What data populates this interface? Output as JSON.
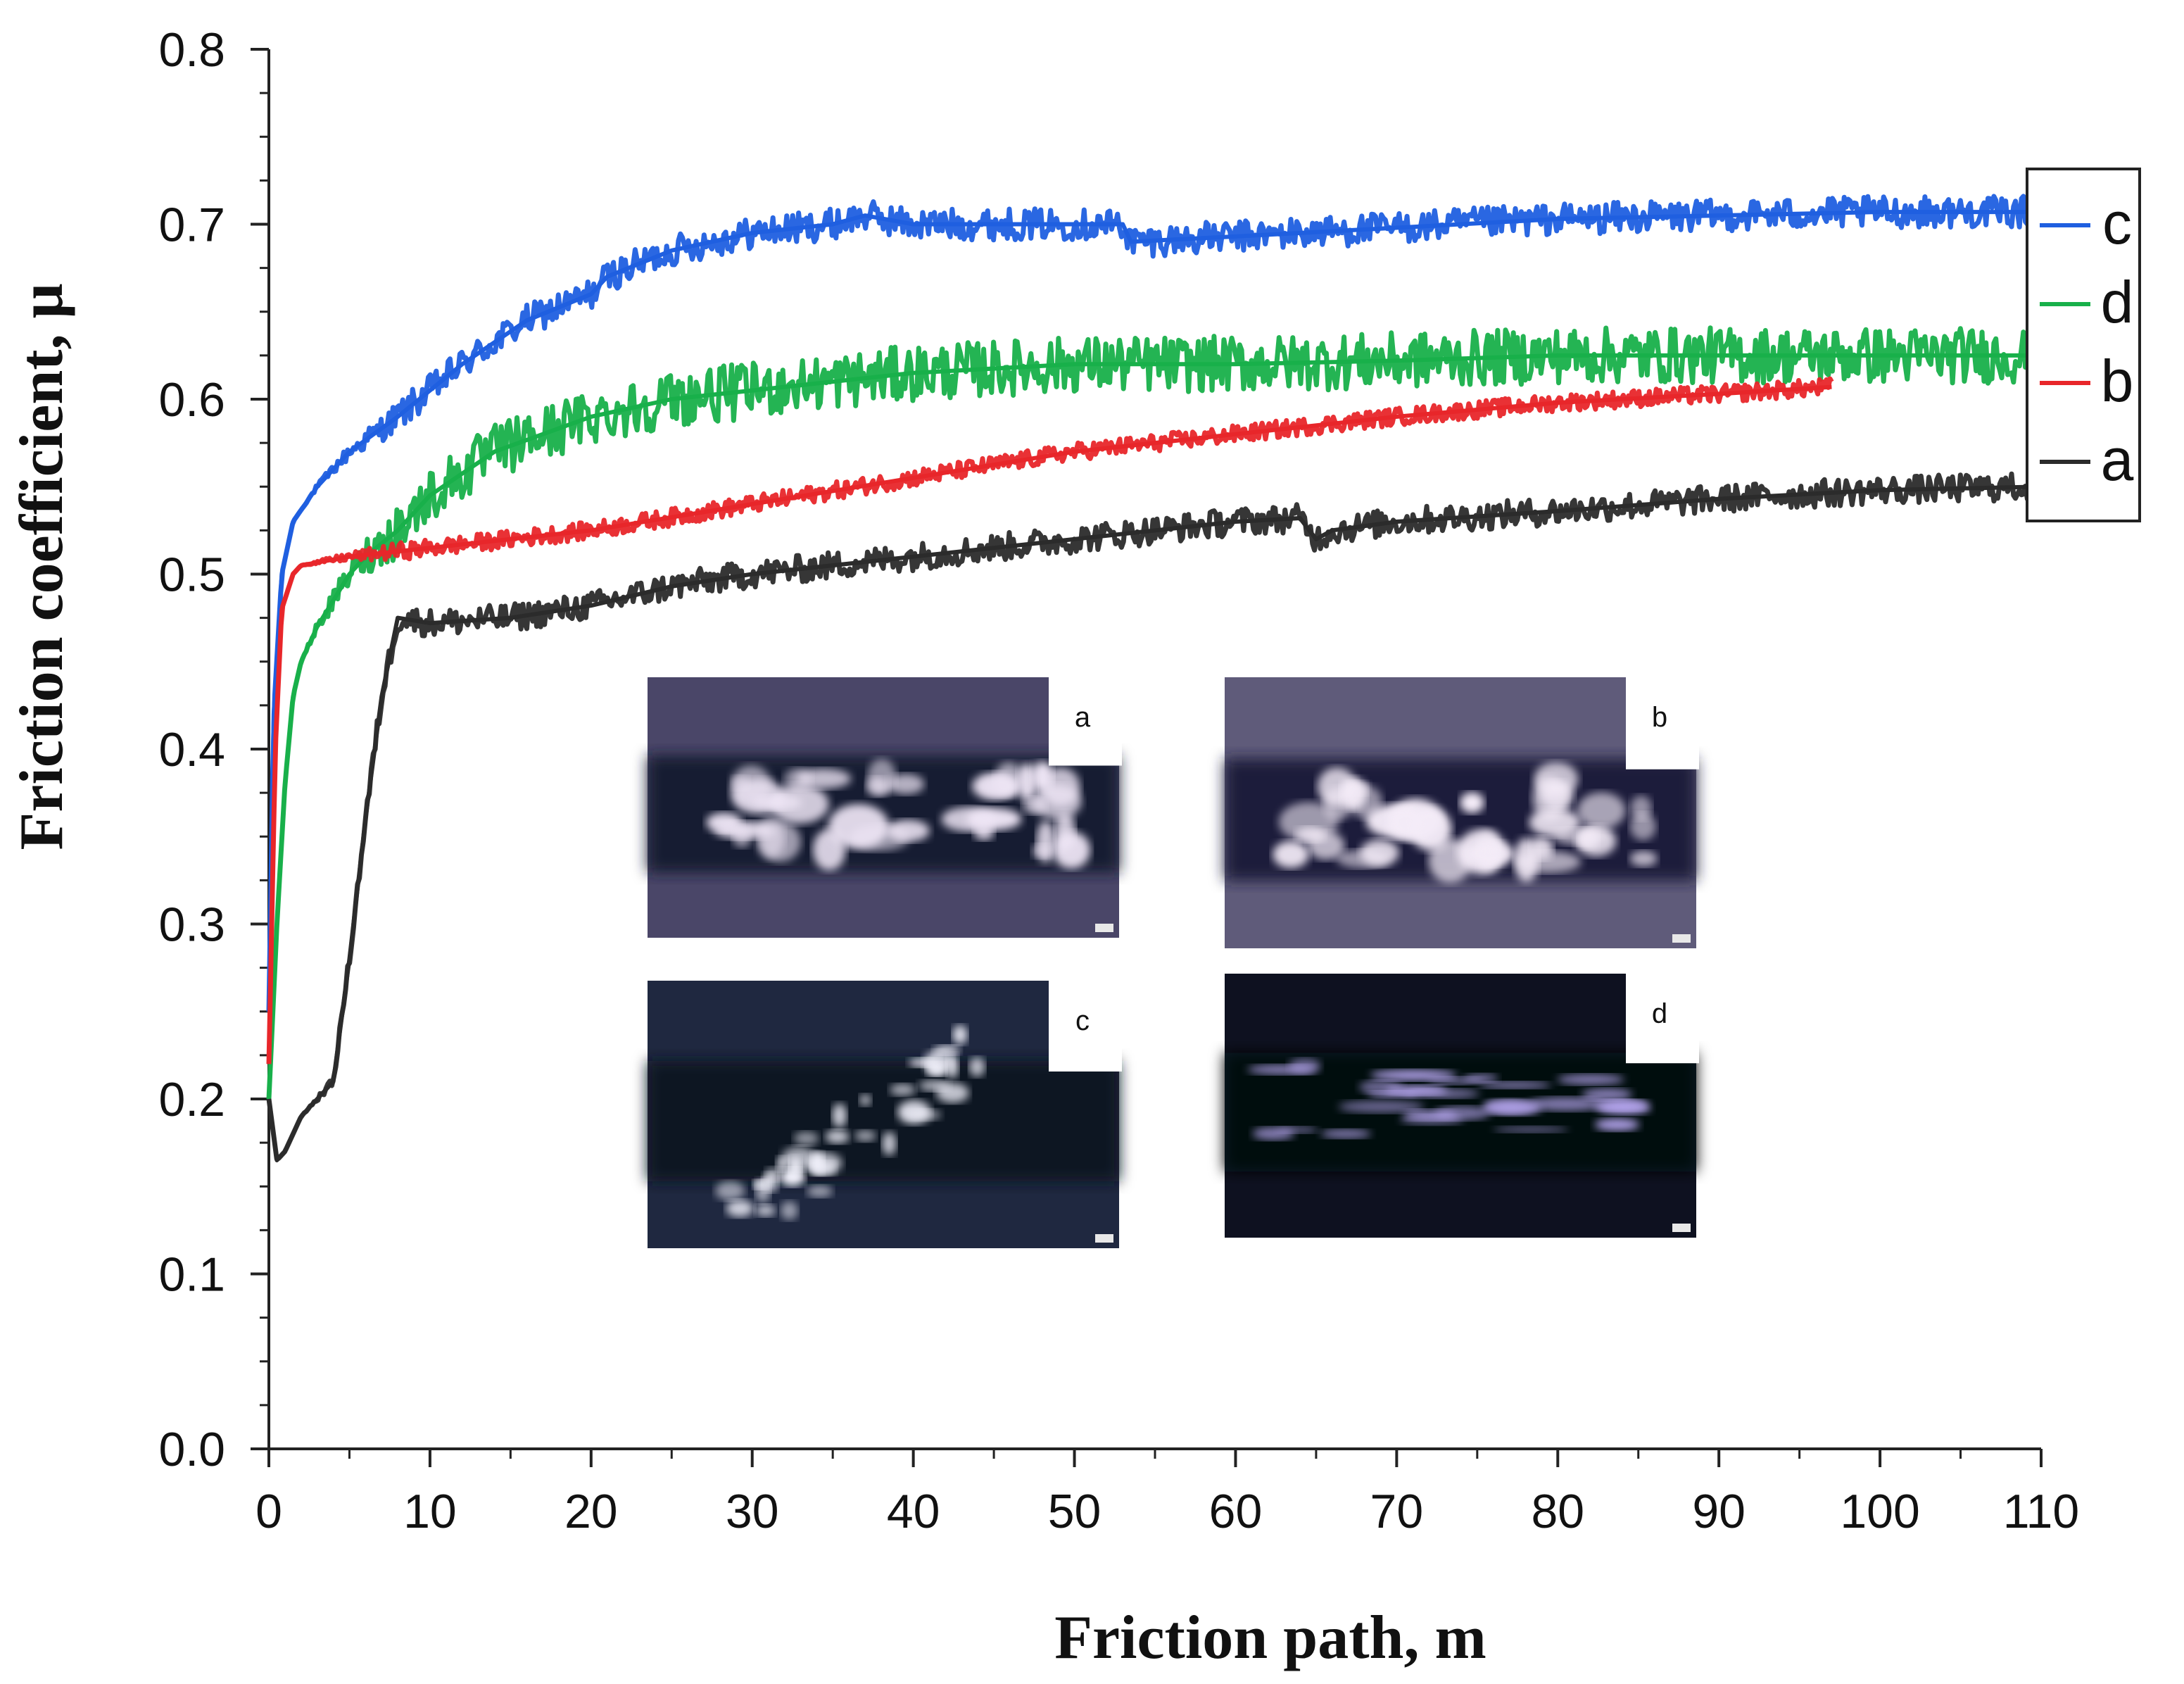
{
  "chart_data": {
    "type": "line",
    "xlabel": "Friction path, m",
    "ylabel": "Friction coefficient, μ",
    "xlim": [
      0,
      110
    ],
    "ylim": [
      0,
      0.8
    ],
    "x_ticks": [
      0,
      10,
      20,
      30,
      40,
      50,
      60,
      70,
      80,
      90,
      100,
      110
    ],
    "x_tick_labels": [
      "0",
      "10",
      "20",
      "30",
      "40",
      "50",
      "60",
      "70",
      "80",
      "90",
      "100",
      "110"
    ],
    "y_ticks": [
      0.0,
      0.1,
      0.2,
      0.3,
      0.4,
      0.5,
      0.6,
      0.7,
      0.8
    ],
    "y_tick_labels": [
      "0.0",
      "0.1",
      "0.2",
      "0.3",
      "0.4",
      "0.5",
      "0.6",
      "0.7",
      "0.8"
    ],
    "grid": false,
    "legend_position": "right",
    "series": [
      {
        "name": "c",
        "color": "#1f5fe0",
        "noise": 0.009,
        "x": [
          0,
          0.3,
          0.8,
          1.5,
          3,
          5,
          8,
          12,
          16,
          20,
          21,
          25,
          30,
          35,
          37,
          40,
          45,
          50,
          53,
          53.5,
          60,
          70,
          80,
          90,
          100,
          110
        ],
        "y": [
          0.25,
          0.42,
          0.5,
          0.53,
          0.55,
          0.57,
          0.59,
          0.62,
          0.645,
          0.66,
          0.67,
          0.685,
          0.695,
          0.7,
          0.705,
          0.7,
          0.7,
          0.7,
          0.7,
          0.69,
          0.693,
          0.698,
          0.703,
          0.705,
          0.707,
          0.707
        ]
      },
      {
        "name": "d",
        "color": "#18b04a",
        "noise": 0.016,
        "x": [
          0,
          0.5,
          1,
          1.5,
          2,
          3,
          4,
          5,
          6,
          8,
          10,
          14,
          20,
          25,
          30,
          40,
          50,
          60,
          70,
          80,
          90,
          100,
          110
        ],
        "y": [
          0.2,
          0.3,
          0.38,
          0.43,
          0.45,
          0.47,
          0.485,
          0.5,
          0.51,
          0.525,
          0.545,
          0.57,
          0.59,
          0.6,
          0.605,
          0.615,
          0.62,
          0.62,
          0.622,
          0.625,
          0.625,
          0.625,
          0.625
        ]
      },
      {
        "name": "b",
        "color": "#e8262a",
        "noise": 0.005,
        "x": [
          0,
          0.4,
          0.8,
          1.5,
          2,
          5,
          10,
          20,
          30,
          40,
          50,
          60,
          70,
          80,
          90,
          97
        ],
        "y": [
          0.22,
          0.4,
          0.48,
          0.5,
          0.505,
          0.51,
          0.515,
          0.525,
          0.54,
          0.555,
          0.57,
          0.58,
          0.59,
          0.598,
          0.603,
          0.607
        ]
      },
      {
        "name": "a",
        "color": "#2b2b2b",
        "noise": 0.008,
        "x": [
          0,
          0.5,
          1,
          2,
          3,
          4,
          5,
          6,
          7,
          8,
          10,
          15,
          20,
          25,
          30,
          40,
          50,
          60,
          64,
          65,
          66,
          70,
          80,
          90,
          100,
          110
        ],
        "y": [
          0.2,
          0.165,
          0.17,
          0.19,
          0.2,
          0.21,
          0.28,
          0.36,
          0.43,
          0.475,
          0.472,
          0.475,
          0.482,
          0.493,
          0.5,
          0.51,
          0.52,
          0.53,
          0.532,
          0.52,
          0.525,
          0.53,
          0.536,
          0.543,
          0.548,
          0.55
        ]
      }
    ],
    "legend_order": [
      "c",
      "d",
      "b",
      "a"
    ],
    "insets": [
      {
        "label": "a"
      },
      {
        "label": "b"
      },
      {
        "label": "c"
      },
      {
        "label": "d"
      }
    ]
  }
}
